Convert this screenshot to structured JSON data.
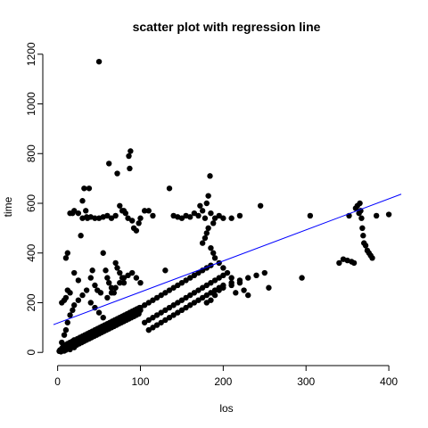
{
  "chart_data": {
    "type": "scatter",
    "title": "scatter plot with regression line",
    "xlabel": "los",
    "ylabel": "time",
    "xlim": [
      -5,
      415
    ],
    "ylim": [
      -10,
      1210
    ],
    "xticks": [
      0,
      100,
      200,
      300,
      400
    ],
    "yticks": [
      0,
      200,
      400,
      600,
      800,
      1000,
      1200
    ],
    "xtick_labels": [
      "0",
      "100",
      "200",
      "300",
      "400"
    ],
    "ytick_labels": [
      "0",
      "200",
      "400",
      "600",
      "800",
      "1000",
      "1200"
    ],
    "grid": false,
    "point_color": "#000000",
    "regression": {
      "intercept": 118,
      "slope": 1.25,
      "color": "#0000ff"
    },
    "series": [
      {
        "points": [
          [
            2,
            5
          ],
          [
            3,
            10
          ],
          [
            4,
            3
          ],
          [
            5,
            8
          ],
          [
            5,
            15
          ],
          [
            6,
            20
          ],
          [
            7,
            12
          ],
          [
            8,
            6
          ],
          [
            8,
            25
          ],
          [
            9,
            18
          ],
          [
            10,
            10
          ],
          [
            10,
            30
          ],
          [
            11,
            22
          ],
          [
            12,
            15
          ],
          [
            12,
            35
          ],
          [
            13,
            28
          ],
          [
            14,
            20
          ],
          [
            15,
            12
          ],
          [
            15,
            40
          ],
          [
            16,
            30
          ],
          [
            17,
            25
          ],
          [
            18,
            45
          ],
          [
            19,
            35
          ],
          [
            20,
            20
          ],
          [
            20,
            50
          ],
          [
            22,
            40
          ],
          [
            23,
            30
          ],
          [
            24,
            55
          ],
          [
            25,
            45
          ],
          [
            26,
            35
          ],
          [
            27,
            60
          ],
          [
            28,
            50
          ],
          [
            29,
            40
          ],
          [
            30,
            65
          ],
          [
            31,
            55
          ],
          [
            32,
            45
          ],
          [
            33,
            70
          ],
          [
            34,
            60
          ],
          [
            35,
            50
          ],
          [
            36,
            75
          ],
          [
            37,
            65
          ],
          [
            38,
            55
          ],
          [
            39,
            80
          ],
          [
            40,
            70
          ],
          [
            41,
            60
          ],
          [
            42,
            85
          ],
          [
            43,
            75
          ],
          [
            44,
            65
          ],
          [
            45,
            90
          ],
          [
            46,
            80
          ],
          [
            47,
            70
          ],
          [
            48,
            95
          ],
          [
            49,
            85
          ],
          [
            50,
            75
          ],
          [
            51,
            100
          ],
          [
            52,
            90
          ],
          [
            53,
            80
          ],
          [
            54,
            105
          ],
          [
            55,
            95
          ],
          [
            56,
            85
          ],
          [
            57,
            110
          ],
          [
            58,
            100
          ],
          [
            59,
            90
          ],
          [
            60,
            115
          ],
          [
            61,
            105
          ],
          [
            62,
            95
          ],
          [
            63,
            120
          ],
          [
            64,
            110
          ],
          [
            65,
            100
          ],
          [
            66,
            125
          ],
          [
            67,
            115
          ],
          [
            68,
            105
          ],
          [
            69,
            130
          ],
          [
            70,
            120
          ],
          [
            71,
            110
          ],
          [
            72,
            135
          ],
          [
            73,
            125
          ],
          [
            74,
            115
          ],
          [
            75,
            140
          ],
          [
            76,
            130
          ],
          [
            77,
            120
          ],
          [
            78,
            145
          ],
          [
            79,
            135
          ],
          [
            80,
            125
          ],
          [
            81,
            150
          ],
          [
            82,
            140
          ],
          [
            83,
            130
          ],
          [
            84,
            155
          ],
          [
            85,
            145
          ],
          [
            86,
            135
          ],
          [
            87,
            160
          ],
          [
            88,
            150
          ],
          [
            89,
            140
          ],
          [
            90,
            165
          ],
          [
            91,
            155
          ],
          [
            92,
            145
          ],
          [
            93,
            170
          ],
          [
            94,
            160
          ],
          [
            95,
            150
          ],
          [
            96,
            175
          ],
          [
            97,
            165
          ],
          [
            98,
            155
          ],
          [
            99,
            180
          ],
          [
            100,
            170
          ],
          [
            5,
            40
          ],
          [
            8,
            70
          ],
          [
            10,
            90
          ],
          [
            12,
            120
          ],
          [
            15,
            150
          ],
          [
            18,
            170
          ],
          [
            20,
            190
          ],
          [
            25,
            210
          ],
          [
            30,
            230
          ],
          [
            35,
            250
          ],
          [
            40,
            200
          ],
          [
            45,
            180
          ],
          [
            50,
            160
          ],
          [
            55,
            140
          ],
          [
            60,
            220
          ],
          [
            65,
            240
          ],
          [
            70,
            260
          ],
          [
            75,
            280
          ],
          [
            80,
            300
          ],
          [
            85,
            310
          ],
          [
            90,
            320
          ],
          [
            95,
            300
          ],
          [
            100,
            280
          ],
          [
            10,
            380
          ],
          [
            12,
            400
          ],
          [
            15,
            560
          ],
          [
            18,
            560
          ],
          [
            20,
            570
          ],
          [
            25,
            560
          ],
          [
            30,
            540
          ],
          [
            35,
            545
          ],
          [
            40,
            545
          ],
          [
            45,
            540
          ],
          [
            50,
            540
          ],
          [
            55,
            545
          ],
          [
            60,
            550
          ],
          [
            62,
            760
          ],
          [
            65,
            540
          ],
          [
            70,
            550
          ],
          [
            72,
            720
          ],
          [
            75,
            590
          ],
          [
            78,
            570
          ],
          [
            80,
            570
          ],
          [
            82,
            560
          ],
          [
            85,
            540
          ],
          [
            86,
            790
          ],
          [
            87,
            740
          ],
          [
            88,
            810
          ],
          [
            90,
            530
          ],
          [
            92,
            500
          ],
          [
            95,
            490
          ],
          [
            98,
            520
          ],
          [
            100,
            540
          ],
          [
            105,
            570
          ],
          [
            110,
            570
          ],
          [
            115,
            550
          ],
          [
            5,
            200
          ],
          [
            8,
            210
          ],
          [
            10,
            220
          ],
          [
            12,
            250
          ],
          [
            15,
            240
          ],
          [
            20,
            320
          ],
          [
            25,
            290
          ],
          [
            28,
            470
          ],
          [
            30,
            610
          ],
          [
            32,
            660
          ],
          [
            34,
            570
          ],
          [
            36,
            540
          ],
          [
            38,
            660
          ],
          [
            40,
            300
          ],
          [
            42,
            330
          ],
          [
            45,
            270
          ],
          [
            48,
            250
          ],
          [
            50,
            1170
          ],
          [
            52,
            240
          ],
          [
            55,
            400
          ],
          [
            58,
            330
          ],
          [
            60,
            300
          ],
          [
            62,
            280
          ],
          [
            65,
            260
          ],
          [
            68,
            240
          ],
          [
            70,
            360
          ],
          [
            72,
            340
          ],
          [
            75,
            320
          ],
          [
            78,
            300
          ],
          [
            80,
            280
          ],
          [
            100,
            180
          ],
          [
            105,
            190
          ],
          [
            110,
            200
          ],
          [
            115,
            210
          ],
          [
            120,
            220
          ],
          [
            125,
            230
          ],
          [
            130,
            240
          ],
          [
            135,
            250
          ],
          [
            140,
            260
          ],
          [
            145,
            270
          ],
          [
            150,
            280
          ],
          [
            155,
            290
          ],
          [
            160,
            300
          ],
          [
            165,
            310
          ],
          [
            170,
            320
          ],
          [
            175,
            330
          ],
          [
            180,
            340
          ],
          [
            185,
            350
          ],
          [
            105,
            120
          ],
          [
            110,
            130
          ],
          [
            115,
            140
          ],
          [
            120,
            150
          ],
          [
            125,
            160
          ],
          [
            130,
            170
          ],
          [
            135,
            180
          ],
          [
            140,
            190
          ],
          [
            145,
            200
          ],
          [
            150,
            210
          ],
          [
            155,
            220
          ],
          [
            160,
            230
          ],
          [
            165,
            240
          ],
          [
            170,
            250
          ],
          [
            175,
            260
          ],
          [
            180,
            270
          ],
          [
            185,
            280
          ],
          [
            190,
            290
          ],
          [
            195,
            300
          ],
          [
            200,
            310
          ],
          [
            110,
            90
          ],
          [
            115,
            100
          ],
          [
            120,
            110
          ],
          [
            125,
            120
          ],
          [
            130,
            130
          ],
          [
            135,
            140
          ],
          [
            140,
            150
          ],
          [
            145,
            160
          ],
          [
            150,
            170
          ],
          [
            155,
            180
          ],
          [
            160,
            190
          ],
          [
            165,
            200
          ],
          [
            170,
            210
          ],
          [
            175,
            220
          ],
          [
            180,
            230
          ],
          [
            185,
            240
          ],
          [
            190,
            250
          ],
          [
            195,
            260
          ],
          [
            200,
            270
          ],
          [
            210,
            280
          ],
          [
            220,
            290
          ],
          [
            230,
            300
          ],
          [
            240,
            310
          ],
          [
            250,
            320
          ],
          [
            130,
            330
          ],
          [
            135,
            660
          ],
          [
            140,
            550
          ],
          [
            145,
            545
          ],
          [
            150,
            540
          ],
          [
            155,
            550
          ],
          [
            160,
            545
          ],
          [
            165,
            560
          ],
          [
            170,
            550
          ],
          [
            172,
            590
          ],
          [
            175,
            570
          ],
          [
            178,
            540
          ],
          [
            180,
            600
          ],
          [
            182,
            630
          ],
          [
            184,
            710
          ],
          [
            185,
            560
          ],
          [
            188,
            520
          ],
          [
            190,
            540
          ],
          [
            195,
            550
          ],
          [
            200,
            540
          ],
          [
            210,
            540
          ],
          [
            220,
            550
          ],
          [
            175,
            440
          ],
          [
            178,
            460
          ],
          [
            180,
            480
          ],
          [
            182,
            500
          ],
          [
            185,
            420
          ],
          [
            188,
            400
          ],
          [
            190,
            380
          ],
          [
            195,
            360
          ],
          [
            200,
            340
          ],
          [
            205,
            320
          ],
          [
            210,
            300
          ],
          [
            180,
            200
          ],
          [
            185,
            210
          ],
          [
            190,
            230
          ],
          [
            195,
            250
          ],
          [
            200,
            260
          ],
          [
            210,
            270
          ],
          [
            215,
            240
          ],
          [
            220,
            280
          ],
          [
            225,
            250
          ],
          [
            230,
            230
          ],
          [
            245,
            590
          ],
          [
            255,
            260
          ],
          [
            295,
            300
          ],
          [
            305,
            550
          ],
          [
            340,
            360
          ],
          [
            345,
            375
          ],
          [
            350,
            370
          ],
          [
            352,
            550
          ],
          [
            355,
            365
          ],
          [
            358,
            360
          ],
          [
            360,
            580
          ],
          [
            362,
            590
          ],
          [
            364,
            560
          ],
          [
            365,
            600
          ],
          [
            366,
            570
          ],
          [
            367,
            540
          ],
          [
            368,
            500
          ],
          [
            369,
            470
          ],
          [
            370,
            440
          ],
          [
            372,
            430
          ],
          [
            374,
            410
          ],
          [
            376,
            400
          ],
          [
            378,
            390
          ],
          [
            380,
            380
          ],
          [
            385,
            550
          ],
          [
            400,
            555
          ]
        ]
      }
    ]
  }
}
